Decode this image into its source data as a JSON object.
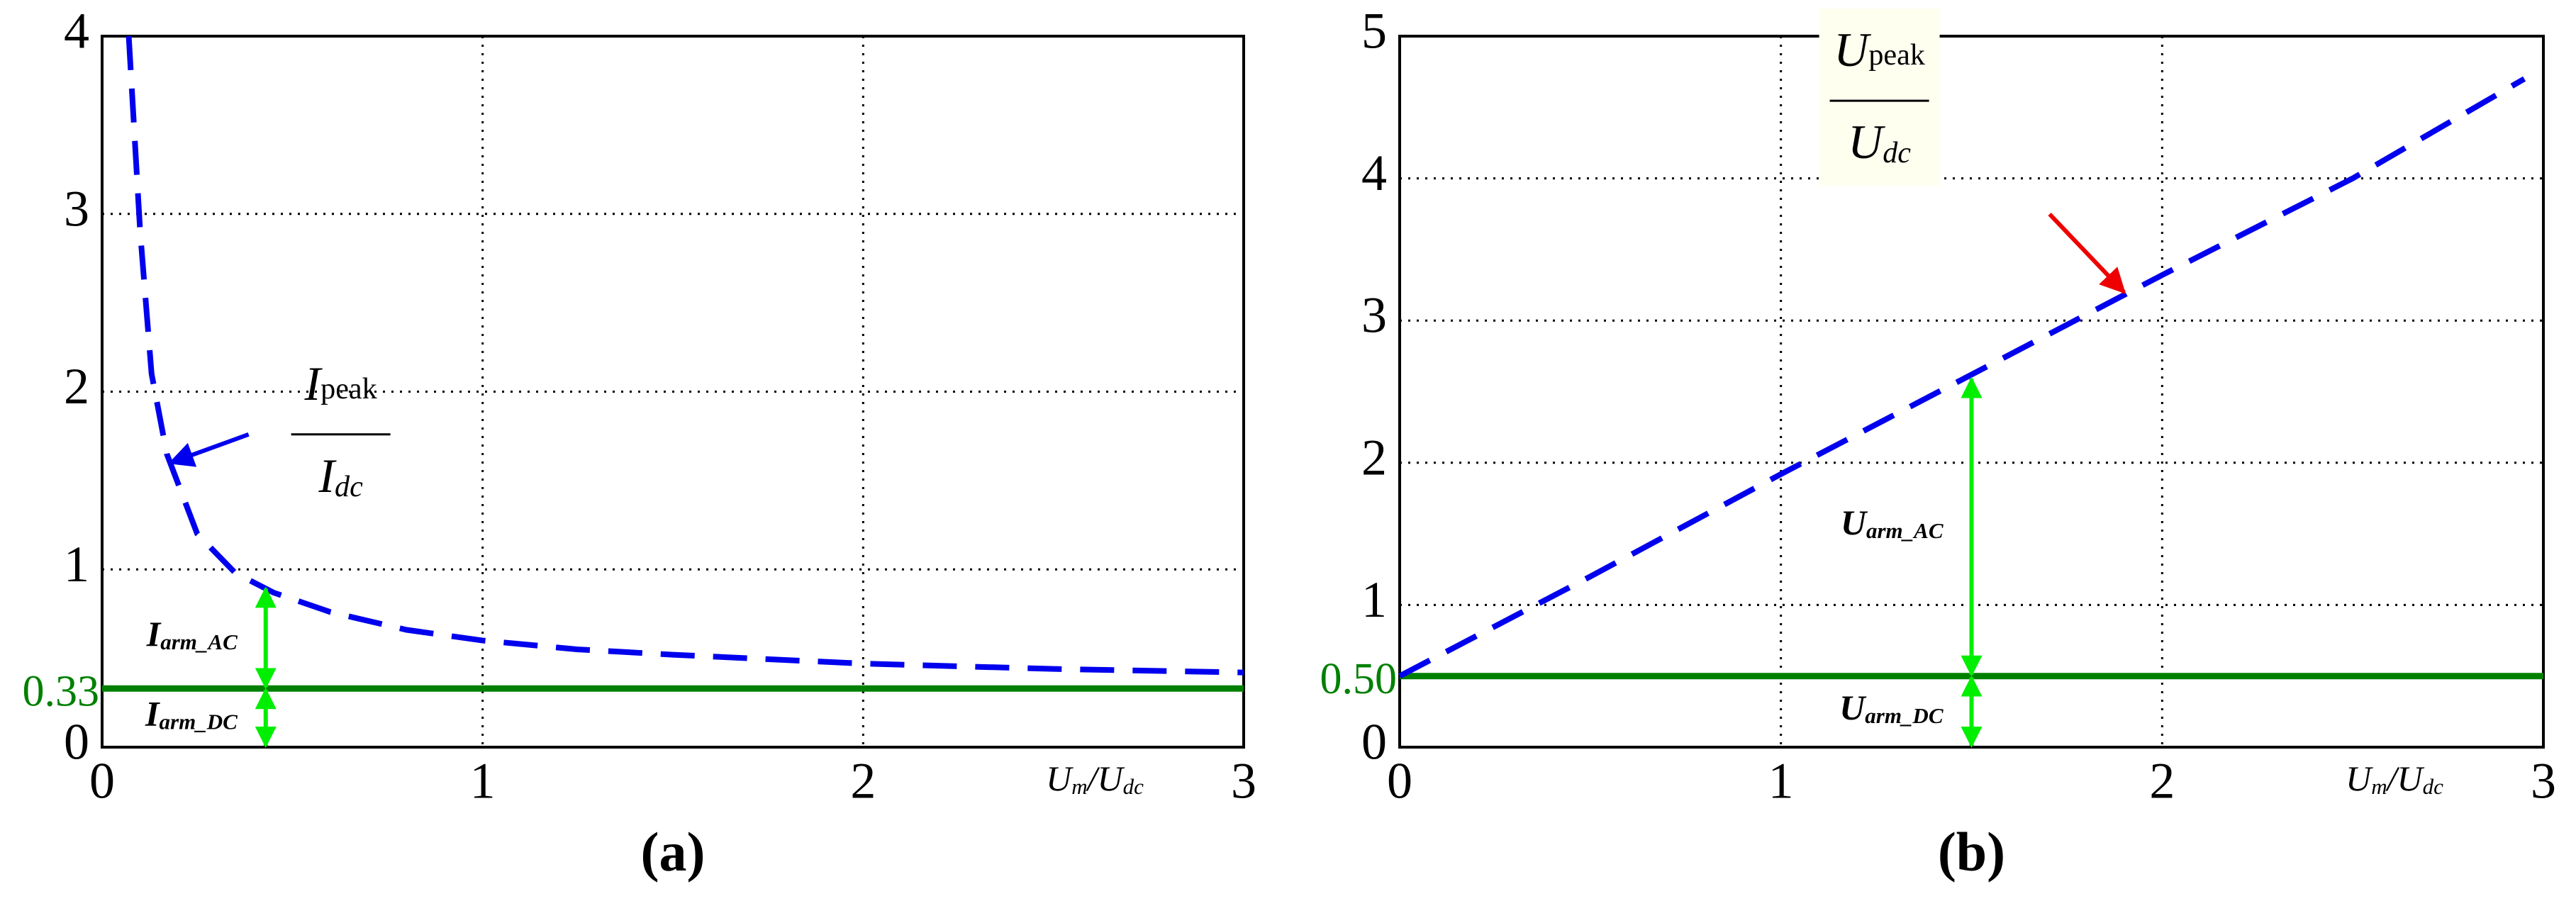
{
  "chart_data": [
    {
      "type": "line",
      "title": "(a)",
      "xlabel": [
        "U",
        "m",
        "/U",
        "dc"
      ],
      "xlim": [
        0,
        3
      ],
      "xticks": [
        0,
        1,
        2,
        3
      ],
      "ylim": [
        0,
        4
      ],
      "yticks": [
        0,
        1,
        2,
        3,
        4
      ],
      "grid": true,
      "series": [
        {
          "name": "I_peak/I_dc",
          "color": "#0000ee",
          "x": [
            0.07,
            0.1,
            0.13,
            0.17,
            0.25,
            0.35,
            0.45,
            0.6,
            0.8,
            1,
            1.25,
            1.5,
            2,
            2.5,
            3
          ],
          "values": [
            4,
            2.9,
            2.1,
            1.65,
            1.2,
            0.98,
            0.87,
            0.76,
            0.66,
            0.6,
            0.55,
            0.52,
            0.47,
            0.44,
            0.42
          ]
        }
      ],
      "reference_line": {
        "value": 0.33,
        "label": "0.33",
        "color": "#008000"
      },
      "spans": [
        {
          "x": 0.43,
          "from": 0.33,
          "to": 0.9,
          "label": [
            "I",
            "arm_AC"
          ],
          "color": "#00ee00"
        },
        {
          "x": 0.43,
          "from": 0,
          "to": 0.33,
          "label": [
            "I",
            "arm_DC"
          ],
          "color": "#00ee00"
        }
      ],
      "annotation": {
        "numerator": [
          "I",
          "peak"
        ],
        "denominator": [
          "I",
          "dc"
        ],
        "point": [
          0.18,
          1.6
        ],
        "arrow_color": "#0000ee",
        "boxed": false
      }
    },
    {
      "type": "line",
      "title": "(b)",
      "xlabel": [
        "U",
        "m",
        "/U",
        "dc"
      ],
      "xlim": [
        0,
        3
      ],
      "xticks": [
        0,
        1,
        2,
        3
      ],
      "ylim": [
        0,
        5
      ],
      "yticks": [
        0,
        1,
        2,
        3,
        4,
        5
      ],
      "grid": true,
      "series": [
        {
          "name": "U_peak/U_dc",
          "color": "#0000ee",
          "x": [
            0,
            0.5,
            1,
            1.5,
            2,
            2.5,
            2.95
          ],
          "values": [
            0.5,
            1.2,
            1.92,
            2.62,
            3.32,
            4.0,
            4.7
          ]
        }
      ],
      "reference_line": {
        "value": 0.5,
        "label": "0.50",
        "color": "#008000"
      },
      "spans": [
        {
          "x": 1.5,
          "from": 0.5,
          "to": 2.6,
          "label": [
            "U",
            "arm_AC"
          ],
          "color": "#00ee00"
        },
        {
          "x": 1.5,
          "from": 0,
          "to": 0.5,
          "label": [
            "U",
            "arm_DC"
          ],
          "color": "#00ee00"
        }
      ],
      "annotation": {
        "numerator": [
          "U",
          "peak"
        ],
        "denominator": [
          "U",
          "dc"
        ],
        "point": [
          1.9,
          3.2
        ],
        "arrow_color": "#ee0000",
        "boxed": true
      }
    }
  ]
}
